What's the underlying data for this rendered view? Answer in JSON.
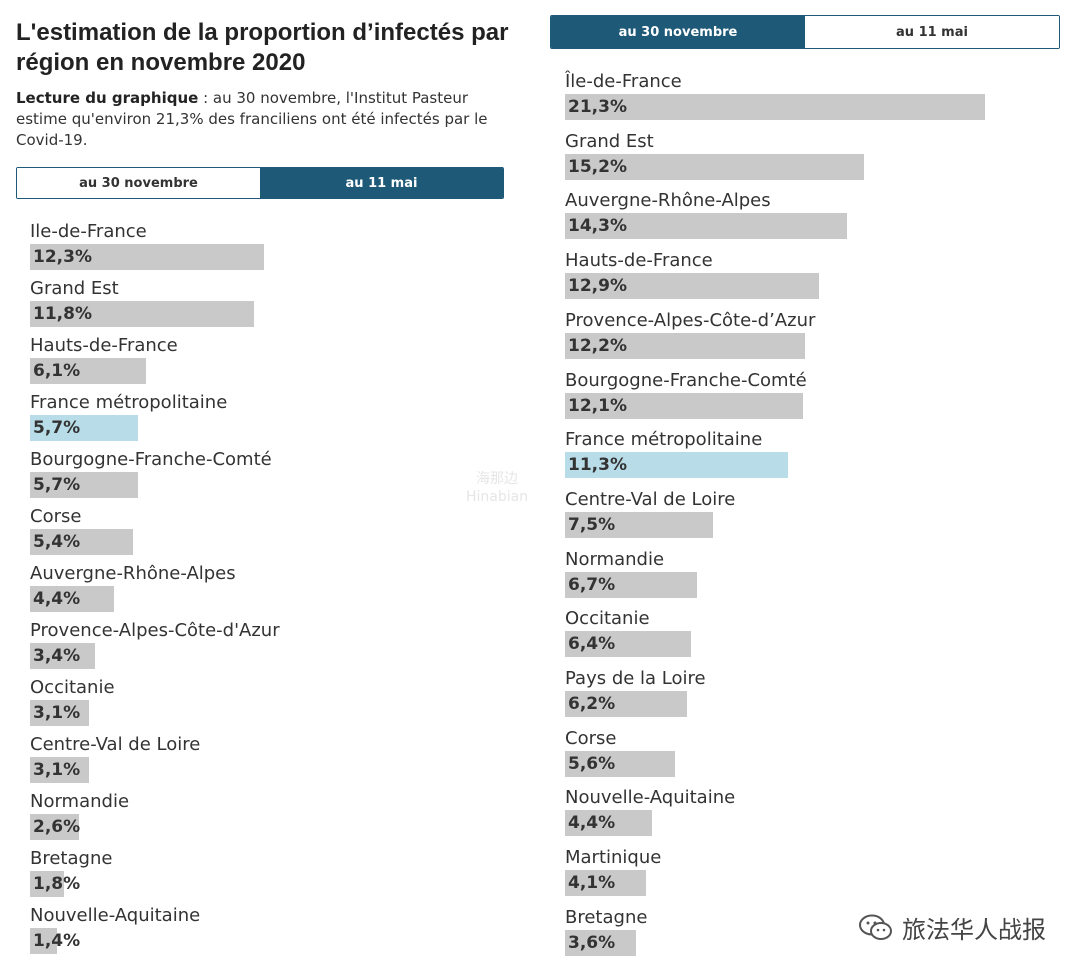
{
  "title": "L'estimation de la proportion d’infectés par région en novembre 2020",
  "reading": {
    "label": "Lecture du graphique",
    "text": " : au 30 novembre, l'Institut Pasteur estime qu'environ 21,3% des franciliens ont été infectés par le Covid-19."
  },
  "left_tabs": [
    {
      "label": "au 30 novembre",
      "active": false
    },
    {
      "label": "au 11 mai",
      "active": true
    }
  ],
  "right_tabs": [
    {
      "label": "au 30 novembre",
      "active": true
    },
    {
      "label": "au 11 mai",
      "active": false
    }
  ],
  "colors": {
    "bar": "#c9c9c9",
    "highlight": "#b9dde8",
    "tab_active": "#1e5a78"
  },
  "chart_data": [
    {
      "type": "bar",
      "orientation": "horizontal",
      "title": "au 11 mai",
      "xlim": [
        0,
        25
      ],
      "highlight_category": "France métropolitaine",
      "categories": [
        "Ile-de-France",
        "Grand Est",
        "Hauts-de-France",
        "France métropolitaine",
        "Bourgogne-Franche-Comté",
        "Corse",
        "Auvergne-Rhône-Alpes",
        "Provence-Alpes-Côte-d'Azur",
        "Occitanie",
        "Centre-Val de Loire",
        "Normandie",
        "Bretagne",
        "Nouvelle-Aquitaine"
      ],
      "values": [
        12.3,
        11.8,
        6.1,
        5.7,
        5.7,
        5.4,
        4.4,
        3.4,
        3.1,
        3.1,
        2.6,
        1.8,
        1.4
      ],
      "value_labels": [
        "12,3%",
        "11,8%",
        "6,1%",
        "5,7%",
        "5,7%",
        "5,4%",
        "4,4%",
        "3,4%",
        "3,1%",
        "3,1%",
        "2,6%",
        "1,8%",
        "1,4%"
      ]
    },
    {
      "type": "bar",
      "orientation": "horizontal",
      "title": "au 30 novembre",
      "xlim": [
        0,
        25
      ],
      "highlight_category": "France métropolitaine",
      "categories": [
        "Île-de-France",
        "Grand Est",
        "Auvergne-Rhône-Alpes",
        "Hauts-de-France",
        "Provence-Alpes-Côte-d’Azur",
        "Bourgogne-Franche-Comté",
        "France métropolitaine",
        "Centre-Val de Loire",
        "Normandie",
        "Occitanie",
        "Pays de la Loire",
        "Corse",
        "Nouvelle-Aquitaine",
        "Martinique",
        "Bretagne"
      ],
      "values": [
        21.3,
        15.2,
        14.3,
        12.9,
        12.2,
        12.1,
        11.3,
        7.5,
        6.7,
        6.4,
        6.2,
        5.6,
        4.4,
        4.1,
        3.6
      ],
      "value_labels": [
        "21,3%",
        "15,2%",
        "14,3%",
        "12,9%",
        "12,2%",
        "12,1%",
        "11,3%",
        "7,5%",
        "6,7%",
        "6,4%",
        "6,2%",
        "5,6%",
        "4,4%",
        "4,1%",
        "3,6%"
      ]
    }
  ],
  "watermark": {
    "text": "旅法华人战报",
    "icon": "wechat-icon"
  },
  "faint_mark": {
    "line1": "海那边",
    "line2": "Hinabian"
  }
}
